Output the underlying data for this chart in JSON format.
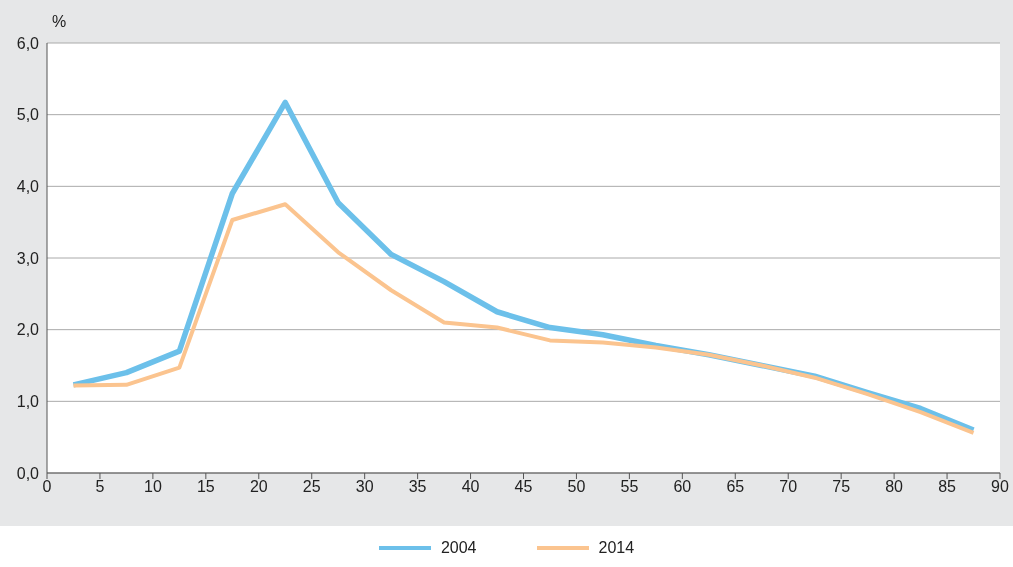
{
  "chart_data": {
    "type": "line",
    "ylabel": "%",
    "x": [
      2.5,
      7.5,
      12.5,
      17.5,
      22.5,
      27.5,
      32.5,
      37.5,
      42.5,
      47.5,
      52.5,
      57.5,
      62.5,
      67.5,
      72.5,
      77.5,
      82.5,
      87.5
    ],
    "series": [
      {
        "name": "2004",
        "color": "#6cc0ea",
        "values": [
          1.23,
          1.4,
          1.7,
          3.9,
          5.17,
          3.77,
          3.05,
          2.67,
          2.25,
          2.03,
          1.93,
          1.78,
          1.65,
          1.5,
          1.35,
          1.12,
          0.9,
          0.6
        ]
      },
      {
        "name": "2014",
        "color": "#fbc48f",
        "values": [
          1.22,
          1.23,
          1.47,
          3.53,
          3.75,
          3.08,
          2.55,
          2.1,
          2.03,
          1.85,
          1.82,
          1.75,
          1.65,
          1.5,
          1.33,
          1.1,
          0.85,
          0.56
        ]
      }
    ],
    "xlim": [
      0,
      90
    ],
    "xticks": [
      0,
      5,
      10,
      15,
      20,
      25,
      30,
      35,
      40,
      45,
      50,
      55,
      60,
      65,
      70,
      75,
      80,
      85,
      90
    ],
    "ylim": [
      0,
      6
    ],
    "yticks": [
      {
        "value": 0,
        "label": "0,0"
      },
      {
        "value": 1,
        "label": "1,0"
      },
      {
        "value": 2,
        "label": "2,0"
      },
      {
        "value": 3,
        "label": "3,0"
      },
      {
        "value": 4,
        "label": "4,0"
      },
      {
        "value": 5,
        "label": "5,0"
      },
      {
        "value": 6,
        "label": "6,0"
      }
    ],
    "grid": "y",
    "legend": "bottom"
  }
}
